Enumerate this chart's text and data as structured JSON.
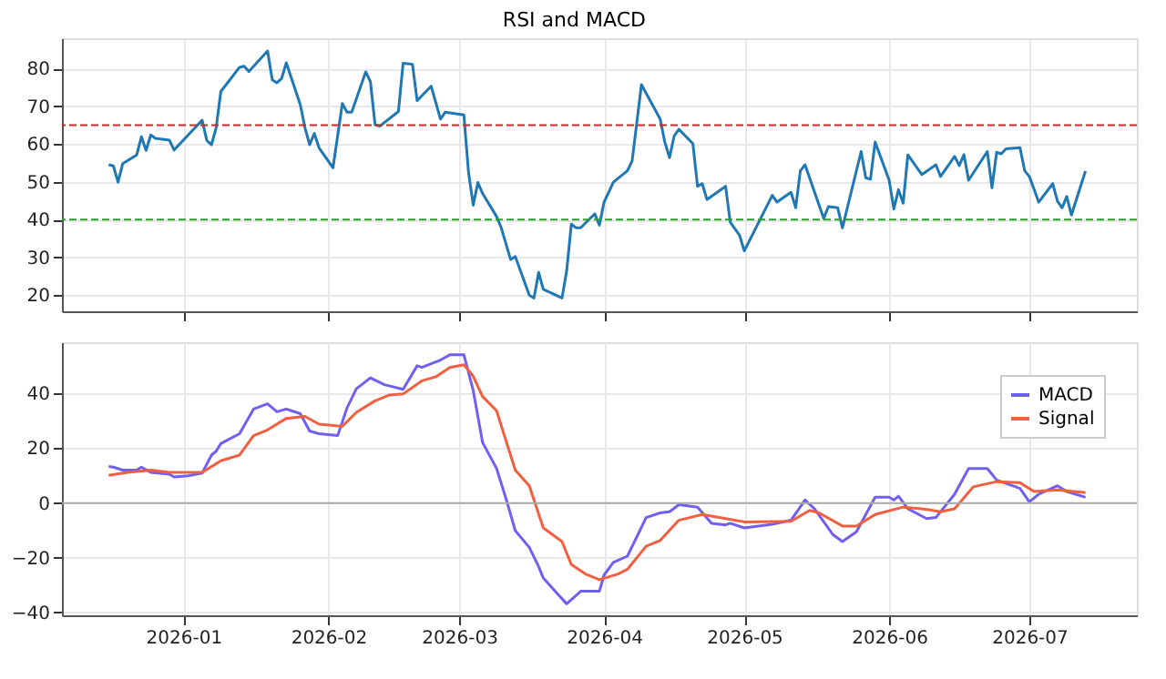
{
  "chart_data": [
    {
      "type": "line",
      "title": "RSI and MACD",
      "xlim": [
        "2025-12-06",
        "2026-07-24"
      ],
      "ylim": [
        15.7,
        88
      ],
      "yticks": [
        20,
        30,
        40,
        50,
        60,
        70,
        80
      ],
      "xticks": [
        {
          "value": "2026-01-01",
          "label": null
        },
        {
          "value": "2026-02-01",
          "label": null
        },
        {
          "value": "2026-03-01",
          "label": null
        },
        {
          "value": "2026-04-01",
          "label": null
        },
        {
          "value": "2026-05-01",
          "label": null
        },
        {
          "value": "2026-06-01",
          "label": null
        },
        {
          "value": "2026-07-01",
          "label": null
        }
      ],
      "tick_labels": "y",
      "grid": true,
      "line_style": "solid",
      "ref_lines": [
        {
          "axis": "y",
          "value": 65,
          "color": "#d62728",
          "line_style": "dashed"
        },
        {
          "axis": "y",
          "value": 40,
          "color": "#2ca02c",
          "line_style": "dashed"
        }
      ],
      "series": [
        {
          "color": "#1f77b4",
          "x": [
            "2025-12-16",
            "2025-12-17",
            "2025-12-18",
            "2025-12-19",
            "2025-12-22",
            "2025-12-23",
            "2025-12-24",
            "2025-12-25",
            "2025-12-26",
            "2025-12-29",
            "2025-12-30",
            "2026-01-05",
            "2026-01-06",
            "2026-01-07",
            "2026-01-08",
            "2026-01-09",
            "2026-01-13",
            "2026-01-14",
            "2026-01-15",
            "2026-01-19",
            "2026-01-20",
            "2026-01-21",
            "2026-01-22",
            "2026-01-23",
            "2026-01-26",
            "2026-01-27",
            "2026-01-28",
            "2026-01-29",
            "2026-01-30",
            "2026-02-02",
            "2026-02-04",
            "2026-02-05",
            "2026-02-06",
            "2026-02-09",
            "2026-02-10",
            "2026-02-11",
            "2026-02-12",
            "2026-02-16",
            "2026-02-17",
            "2026-02-19",
            "2026-02-20",
            "2026-02-23",
            "2026-02-25",
            "2026-02-26",
            "2026-03-02",
            "2026-03-03",
            "2026-03-04",
            "2026-03-05",
            "2026-03-06",
            "2026-03-09",
            "2026-03-10",
            "2026-03-12",
            "2026-03-13",
            "2026-03-16",
            "2026-03-17",
            "2026-03-18",
            "2026-03-19",
            "2026-03-23",
            "2026-03-24",
            "2026-03-25",
            "2026-03-26",
            "2026-03-27",
            "2026-03-30",
            "2026-03-31",
            "2026-04-01",
            "2026-04-03",
            "2026-04-06",
            "2026-04-07",
            "2026-04-09",
            "2026-04-13",
            "2026-04-14",
            "2026-04-15",
            "2026-04-16",
            "2026-04-17",
            "2026-04-20",
            "2026-04-21",
            "2026-04-22",
            "2026-04-23",
            "2026-04-27",
            "2026-04-28",
            "2026-04-30",
            "2026-05-01",
            "2026-05-07",
            "2026-05-08",
            "2026-05-11",
            "2026-05-12",
            "2026-05-13",
            "2026-05-14",
            "2026-05-18",
            "2026-05-19",
            "2026-05-21",
            "2026-05-22",
            "2026-05-26",
            "2026-05-27",
            "2026-05-28",
            "2026-05-29",
            "2026-06-01",
            "2026-06-02",
            "2026-06-03",
            "2026-06-04",
            "2026-06-05",
            "2026-06-08",
            "2026-06-11",
            "2026-06-12",
            "2026-06-15",
            "2026-06-16",
            "2026-06-17",
            "2026-06-18",
            "2026-06-22",
            "2026-06-23",
            "2026-06-24",
            "2026-06-25",
            "2026-06-26",
            "2026-06-29",
            "2026-06-30",
            "2026-07-01",
            "2026-07-03",
            "2026-07-06",
            "2026-07-07",
            "2026-07-08",
            "2026-07-09",
            "2026-07-10",
            "2026-07-13"
          ],
          "values": [
            54.5,
            54.2,
            49.9,
            54.8,
            57.1,
            61.9,
            58.3,
            62.4,
            61.5,
            61.0,
            58.4,
            66.3,
            60.9,
            59.8,
            64.3,
            73.9,
            80.3,
            80.6,
            79.2,
            84.6,
            77.0,
            76.2,
            77.3,
            81.5,
            70.4,
            64.3,
            59.8,
            62.8,
            59.0,
            53.7,
            70.7,
            68.4,
            68.4,
            79.1,
            76.5,
            65.1,
            64.7,
            68.6,
            81.4,
            81.1,
            71.5,
            75.3,
            66.6,
            68.4,
            67.7,
            52.5,
            43.8,
            49.8,
            46.9,
            40.8,
            37.8,
            29.4,
            30.2,
            20.0,
            19.2,
            26.0,
            21.5,
            19.2,
            26.4,
            38.8,
            37.8,
            37.8,
            41.5,
            38.5,
            44.6,
            49.9,
            52.9,
            55.5,
            75.7,
            66.6,
            60.5,
            56.4,
            62.1,
            63.9,
            60.1,
            48.8,
            49.5,
            45.3,
            48.8,
            39.3,
            35.8,
            31.7,
            46.4,
            44.6,
            47.2,
            43.1,
            52.9,
            54.5,
            40.3,
            43.4,
            43.1,
            37.8,
            58.0,
            51.0,
            50.7,
            60.5,
            50.4,
            42.8,
            47.9,
            44.3,
            57.1,
            51.9,
            54.5,
            51.4,
            56.7,
            54.3,
            57.2,
            50.4,
            58.0,
            48.4,
            57.8,
            57.4,
            58.7,
            59.0,
            52.9,
            51.4,
            44.6,
            49.5,
            44.9,
            43.1,
            46.1,
            41.2,
            52.8
          ]
        }
      ]
    },
    {
      "type": "line",
      "xlim": [
        "2025-12-06",
        "2026-07-24"
      ],
      "ylim": [
        -41,
        58.7
      ],
      "yticks": [
        {
          "value": -40,
          "label": "−40"
        },
        {
          "value": -20,
          "label": "−20"
        },
        0,
        20,
        40
      ],
      "xticks": [
        {
          "value": "2026-01-01",
          "label": "2026-01"
        },
        {
          "value": "2026-02-01",
          "label": "2026-02"
        },
        {
          "value": "2026-03-01",
          "label": "2026-03"
        },
        {
          "value": "2026-04-01",
          "label": "2026-04"
        },
        {
          "value": "2026-05-01",
          "label": "2026-05"
        },
        {
          "value": "2026-06-01",
          "label": "2026-06"
        },
        {
          "value": "2026-07-01",
          "label": "2026-07"
        }
      ],
      "grid": true,
      "legend": "top right",
      "line_style": "solid",
      "ref_lines": [
        {
          "axis": "y",
          "value": 0,
          "color": "#aaaaaa",
          "line_style": "solid"
        }
      ],
      "series": [
        {
          "name": "MACD",
          "color": "#7060f0",
          "x": [
            "2025-12-16",
            "2025-12-17",
            "2025-12-19",
            "2025-12-22",
            "2025-12-23",
            "2025-12-25",
            "2025-12-29",
            "2025-12-30",
            "2026-01-02",
            "2026-01-05",
            "2026-01-07",
            "2026-01-08",
            "2026-01-09",
            "2026-01-13",
            "2026-01-16",
            "2026-01-19",
            "2026-01-21",
            "2026-01-23",
            "2026-01-26",
            "2026-01-28",
            "2026-01-30",
            "2026-02-03",
            "2026-02-05",
            "2026-02-07",
            "2026-02-10",
            "2026-02-13",
            "2026-02-17",
            "2026-02-20",
            "2026-02-21",
            "2026-02-25",
            "2026-02-27",
            "2026-03-02",
            "2026-03-04",
            "2026-03-06",
            "2026-03-09",
            "2026-03-11",
            "2026-03-13",
            "2026-03-16",
            "2026-03-18",
            "2026-03-19",
            "2026-03-22",
            "2026-03-24",
            "2026-03-27",
            "2026-03-30",
            "2026-03-31",
            "2026-04-01",
            "2026-04-03",
            "2026-04-06",
            "2026-04-10",
            "2026-04-13",
            "2026-04-15",
            "2026-04-17",
            "2026-04-21",
            "2026-04-24",
            "2026-04-27",
            "2026-04-28",
            "2026-05-01",
            "2026-05-07",
            "2026-05-11",
            "2026-05-14",
            "2026-05-16",
            "2026-05-20",
            "2026-05-22",
            "2026-05-25",
            "2026-05-27",
            "2026-05-29",
            "2026-06-01",
            "2026-06-02",
            "2026-06-03",
            "2026-06-05",
            "2026-06-09",
            "2026-06-11",
            "2026-06-15",
            "2026-06-18",
            "2026-06-22",
            "2026-06-24",
            "2026-06-29",
            "2026-07-01",
            "2026-07-03",
            "2026-07-07",
            "2026-07-09",
            "2026-07-13"
          ],
          "values": [
            13.3,
            13.1,
            12.0,
            12.0,
            13.1,
            11.2,
            10.5,
            9.5,
            9.9,
            10.9,
            17.5,
            18.9,
            21.7,
            25.3,
            34.3,
            36.2,
            33.3,
            34.3,
            32.6,
            26.3,
            25.3,
            24.6,
            34.7,
            41.7,
            45.7,
            43.2,
            41.5,
            50.1,
            49.5,
            52.2,
            54.1,
            54.1,
            41.1,
            22.1,
            12.6,
            1.7,
            -10.1,
            -16.2,
            -23.2,
            -27.4,
            -33.1,
            -36.8,
            -32.2,
            -32.2,
            -32.2,
            -26.3,
            -21.7,
            -19.4,
            -5.3,
            -3.6,
            -3.2,
            -0.6,
            -1.5,
            -7.4,
            -8.0,
            -7.4,
            -9.1,
            -7.8,
            -6.3,
            1.1,
            -2.1,
            -11.6,
            -14.1,
            -10.5,
            -4.2,
            2.1,
            2.1,
            1.1,
            2.5,
            -2.1,
            -5.7,
            -5.3,
            3.2,
            12.6,
            12.6,
            8.4,
            5.3,
            0.4,
            3.2,
            6.3,
            4.2,
            2.1
          ]
        },
        {
          "name": "Signal",
          "color": "#f06040",
          "x": [
            "2025-12-16",
            "2025-12-20",
            "2025-12-25",
            "2025-12-29",
            "2026-01-05",
            "2026-01-09",
            "2026-01-13",
            "2026-01-16",
            "2026-01-19",
            "2026-01-23",
            "2026-01-27",
            "2026-01-30",
            "2026-02-04",
            "2026-02-07",
            "2026-02-11",
            "2026-02-14",
            "2026-02-17",
            "2026-02-21",
            "2026-02-24",
            "2026-02-27",
            "2026-03-02",
            "2026-03-04",
            "2026-03-06",
            "2026-03-09",
            "2026-03-13",
            "2026-03-16",
            "2026-03-19",
            "2026-03-23",
            "2026-03-25",
            "2026-03-28",
            "2026-03-31",
            "2026-04-04",
            "2026-04-06",
            "2026-04-10",
            "2026-04-13",
            "2026-04-17",
            "2026-04-22",
            "2026-04-27",
            "2026-05-01",
            "2026-05-11",
            "2026-05-15",
            "2026-05-17",
            "2026-05-22",
            "2026-05-25",
            "2026-05-29",
            "2026-06-04",
            "2026-06-08",
            "2026-06-12",
            "2026-06-15",
            "2026-06-19",
            "2026-06-24",
            "2026-06-29",
            "2026-07-02",
            "2026-07-07",
            "2026-07-13"
          ],
          "values": [
            10.1,
            11.2,
            12.0,
            11.2,
            11.2,
            15.4,
            17.5,
            24.6,
            26.7,
            30.9,
            31.6,
            28.8,
            28.0,
            33.1,
            37.3,
            39.4,
            39.8,
            44.6,
            46.1,
            49.5,
            50.5,
            46.3,
            38.9,
            33.7,
            12.0,
            6.3,
            -9.1,
            -14.1,
            -22.5,
            -25.9,
            -28.0,
            -25.9,
            -24.2,
            -15.8,
            -13.7,
            -6.3,
            -4.2,
            -5.7,
            -6.9,
            -6.7,
            -2.7,
            -3.6,
            -8.4,
            -8.4,
            -4.2,
            -1.5,
            -2.1,
            -3.2,
            -2.1,
            5.9,
            7.8,
            7.4,
            4.2,
            4.8,
            3.8
          ]
        }
      ]
    }
  ]
}
